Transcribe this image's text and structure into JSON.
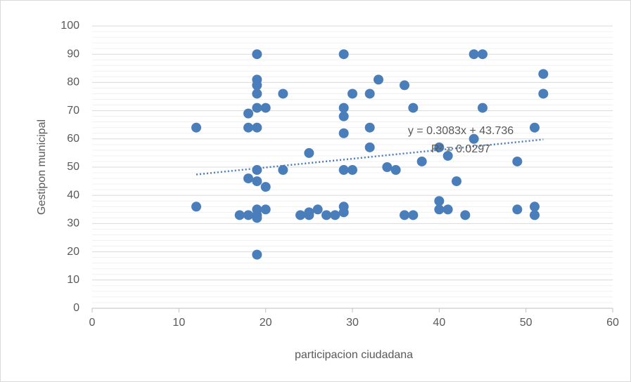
{
  "chart_data": {
    "type": "scatter",
    "xlabel": "participacion ciudadana",
    "ylabel": "Gestipon municipal",
    "series": [
      {
        "name": "Gestipon municipal",
        "color": "#4a7ebb",
        "x": [
          12,
          12,
          17,
          18,
          18,
          18,
          18,
          19,
          19,
          19,
          19,
          19,
          19,
          19,
          19,
          19,
          19,
          19,
          19,
          20,
          20,
          20,
          22,
          22,
          24,
          25,
          25,
          25,
          26,
          27,
          28,
          29,
          29,
          29,
          29,
          29,
          29,
          29,
          30,
          30,
          32,
          32,
          32,
          33,
          34,
          35,
          36,
          36,
          37,
          37,
          38,
          40,
          40,
          40,
          41,
          41,
          42,
          43,
          44,
          44,
          45,
          45,
          49,
          49,
          51,
          51,
          51,
          52,
          52
        ],
        "values": [
          64,
          36,
          33,
          33,
          64,
          69,
          46,
          90,
          81,
          79,
          76,
          71,
          64,
          49,
          45,
          35,
          33,
          32,
          19,
          71,
          43,
          35,
          76,
          49,
          33,
          55,
          34,
          33,
          35,
          33,
          33,
          90,
          71,
          68,
          62,
          49,
          36,
          34,
          76,
          49,
          76,
          64,
          57,
          81,
          50,
          49,
          79,
          33,
          71,
          33,
          52,
          57,
          38,
          35,
          54,
          35,
          45,
          33,
          90,
          60,
          90,
          71,
          52,
          35,
          64,
          36,
          33,
          76,
          83
        ]
      }
    ],
    "trendline": {
      "x": [
        12,
        52
      ],
      "values": [
        47.4,
        59.8
      ],
      "color": "#4a7ebb"
    },
    "annotations": [
      "y = 0.3083x + 43.736",
      "R² = 0.0297"
    ],
    "xlim": [
      0,
      60
    ],
    "xticks": [
      0,
      10,
      20,
      30,
      40,
      50,
      60
    ],
    "ylim": [
      0,
      100
    ],
    "yticks": [
      0,
      10,
      20,
      30,
      40,
      50,
      60,
      70,
      80,
      90,
      100
    ],
    "grid": true,
    "minor_grid": true
  }
}
